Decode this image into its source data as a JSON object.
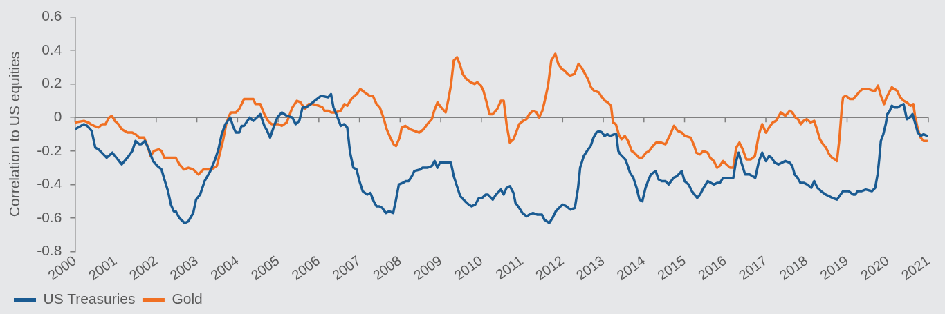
{
  "chart_data": {
    "type": "line",
    "ylabel": "Correlation to US equities",
    "xlim": [
      2000,
      2021
    ],
    "xticks": [
      2000,
      2001,
      2002,
      2003,
      2004,
      2005,
      2006,
      2007,
      2008,
      2009,
      2010,
      2011,
      2012,
      2013,
      2014,
      2015,
      2016,
      2017,
      2018,
      2019,
      2020,
      2021
    ],
    "ylim": [
      -0.8,
      0.6
    ],
    "yticks": [
      -0.8,
      -0.6,
      -0.4,
      -0.2,
      0,
      0.2,
      0.4,
      0.6
    ],
    "legend": "bottom left",
    "ref_lines": [
      {
        "axis": "y",
        "value": 0,
        "color": "#808080"
      }
    ],
    "series": [
      {
        "name": "US Treasuries",
        "color": "#1a5b92",
        "x": [
          2000.0,
          2000.22,
          2000.3,
          2000.41,
          2000.5,
          2000.58,
          2000.78,
          2000.92,
          2001.15,
          2001.29,
          2001.41,
          2001.49,
          2001.58,
          2001.63,
          2001.72,
          2001.8,
          2001.92,
          2002.03,
          2002.13,
          2002.2,
          2002.29,
          2002.36,
          2002.43,
          2002.48,
          2002.57,
          2002.7,
          2002.79,
          2002.91,
          2002.98,
          2003.08,
          2003.19,
          2003.33,
          2003.45,
          2003.53,
          2003.61,
          2003.7,
          2003.82,
          2003.9,
          2003.96,
          2004.04,
          2004.1,
          2004.16,
          2004.3,
          2004.39,
          2004.56,
          2004.66,
          2004.73,
          2004.8,
          2004.9,
          2004.98,
          2005.09,
          2005.21,
          2005.35,
          2005.43,
          2005.52,
          2005.6,
          2005.69,
          2005.8,
          2005.95,
          2006.06,
          2006.23,
          2006.3,
          2006.36,
          2006.43,
          2006.54,
          2006.62,
          2006.7,
          2006.77,
          2006.85,
          2006.93,
          2007.0,
          2007.08,
          2007.19,
          2007.27,
          2007.35,
          2007.42,
          2007.49,
          2007.56,
          2007.65,
          2007.73,
          2007.83,
          2007.9,
          2007.97,
          2008.07,
          2008.14,
          2008.21,
          2008.29,
          2008.35,
          2008.5,
          2008.55,
          2008.67,
          2008.78,
          2008.85,
          2008.92,
          2008.98,
          2009.09,
          2009.18,
          2009.25,
          2009.32,
          2009.4,
          2009.48,
          2009.6,
          2009.69,
          2009.76,
          2009.85,
          2009.94,
          2010.02,
          2010.11,
          2010.16,
          2010.28,
          2010.36,
          2010.48,
          2010.55,
          2010.62,
          2010.7,
          2010.79,
          2010.84,
          2010.93,
          2011.01,
          2011.11,
          2011.18,
          2011.27,
          2011.38,
          2011.49,
          2011.55,
          2011.67,
          2011.75,
          2011.83,
          2011.91,
          2012.0,
          2012.09,
          2012.19,
          2012.3,
          2012.38,
          2012.43,
          2012.52,
          2012.6,
          2012.69,
          2012.76,
          2012.83,
          2012.9,
          2012.97,
          2013.03,
          2013.1,
          2013.17,
          2013.27,
          2013.32,
          2013.37,
          2013.42,
          2013.54,
          2013.59,
          2013.66,
          2013.74,
          2013.82,
          2013.89,
          2013.96,
          2014.04,
          2014.1,
          2014.17,
          2014.29,
          2014.36,
          2014.44,
          2014.53,
          2014.61,
          2014.73,
          2014.81,
          2014.93,
          2015.0,
          2015.1,
          2015.18,
          2015.31,
          2015.38,
          2015.47,
          2015.57,
          2015.72,
          2015.81,
          2015.87,
          2015.95,
          2016.03,
          2016.12,
          2016.2,
          2016.26,
          2016.33,
          2016.4,
          2016.49,
          2016.6,
          2016.74,
          2016.83,
          2016.91,
          2017.0,
          2017.08,
          2017.14,
          2017.22,
          2017.31,
          2017.48,
          2017.59,
          2017.65,
          2017.71,
          2017.78,
          2017.85,
          2017.93,
          2018.02,
          2018.12,
          2018.19,
          2018.27,
          2018.36,
          2018.47,
          2018.56,
          2018.64,
          2018.75,
          2018.81,
          2018.9,
          2019.04,
          2019.15,
          2019.2,
          2019.26,
          2019.35,
          2019.46,
          2019.61,
          2019.69,
          2019.75,
          2019.79,
          2019.83,
          2019.89,
          2019.95,
          2019.99,
          2020.05,
          2020.1,
          2020.17,
          2020.24,
          2020.31,
          2020.39,
          2020.47,
          2020.54,
          2020.61,
          2020.67,
          2020.74,
          2020.81,
          2020.88,
          2020.97
        ],
        "values": [
          -0.07,
          -0.04,
          -0.05,
          -0.08,
          -0.18,
          -0.19,
          -0.24,
          -0.21,
          -0.28,
          -0.24,
          -0.2,
          -0.14,
          -0.16,
          -0.16,
          -0.14,
          -0.18,
          -0.26,
          -0.29,
          -0.31,
          -0.37,
          -0.44,
          -0.52,
          -0.56,
          -0.56,
          -0.6,
          -0.63,
          -0.62,
          -0.57,
          -0.49,
          -0.46,
          -0.38,
          -0.32,
          -0.25,
          -0.19,
          -0.1,
          -0.04,
          0,
          -0.06,
          -0.09,
          -0.09,
          -0.05,
          -0.05,
          0,
          -0.02,
          0.02,
          -0.05,
          -0.08,
          -0.12,
          -0.05,
          0,
          0.03,
          0.01,
          0,
          -0.04,
          -0.02,
          0.06,
          0.06,
          0.08,
          0.11,
          0.13,
          0.12,
          0.14,
          0.06,
          0.02,
          -0.05,
          -0.04,
          -0.06,
          -0.21,
          -0.3,
          -0.31,
          -0.38,
          -0.44,
          -0.46,
          -0.45,
          -0.5,
          -0.53,
          -0.53,
          -0.54,
          -0.57,
          -0.56,
          -0.57,
          -0.49,
          -0.4,
          -0.39,
          -0.38,
          -0.38,
          -0.35,
          -0.32,
          -0.31,
          -0.3,
          -0.3,
          -0.29,
          -0.26,
          -0.3,
          -0.27,
          -0.27,
          -0.27,
          -0.27,
          -0.35,
          -0.41,
          -0.47,
          -0.5,
          -0.52,
          -0.53,
          -0.52,
          -0.48,
          -0.48,
          -0.46,
          -0.46,
          -0.49,
          -0.46,
          -0.43,
          -0.46,
          -0.42,
          -0.41,
          -0.45,
          -0.51,
          -0.54,
          -0.57,
          -0.59,
          -0.58,
          -0.57,
          -0.58,
          -0.58,
          -0.61,
          -0.63,
          -0.6,
          -0.56,
          -0.54,
          -0.52,
          -0.53,
          -0.55,
          -0.54,
          -0.42,
          -0.3,
          -0.23,
          -0.2,
          -0.17,
          -0.12,
          -0.09,
          -0.08,
          -0.09,
          -0.11,
          -0.1,
          -0.11,
          -0.1,
          -0.1,
          -0.2,
          -0.22,
          -0.25,
          -0.28,
          -0.33,
          -0.36,
          -0.42,
          -0.49,
          -0.5,
          -0.42,
          -0.38,
          -0.34,
          -0.32,
          -0.37,
          -0.38,
          -0.38,
          -0.4,
          -0.36,
          -0.35,
          -0.32,
          -0.38,
          -0.4,
          -0.44,
          -0.48,
          -0.46,
          -0.42,
          -0.38,
          -0.4,
          -0.39,
          -0.39,
          -0.36,
          -0.36,
          -0.36,
          -0.36,
          -0.27,
          -0.21,
          -0.27,
          -0.34,
          -0.34,
          -0.36,
          -0.26,
          -0.21,
          -0.26,
          -0.23,
          -0.24,
          -0.27,
          -0.28,
          -0.26,
          -0.27,
          -0.29,
          -0.34,
          -0.36,
          -0.39,
          -0.39,
          -0.4,
          -0.42,
          -0.38,
          -0.42,
          -0.44,
          -0.46,
          -0.47,
          -0.48,
          -0.49,
          -0.47,
          -0.44,
          -0.44,
          -0.46,
          -0.46,
          -0.44,
          -0.44,
          -0.43,
          -0.44,
          -0.42,
          -0.34,
          -0.25,
          -0.14,
          -0.1,
          -0.04,
          0.02,
          0.04,
          0.07,
          0.06,
          0.06,
          0.07,
          0.08,
          -0.01,
          0,
          0.02,
          -0.03,
          -0.09,
          -0.11,
          -0.1,
          -0.11
        ]
      },
      {
        "name": "Gold",
        "color": "#f07023",
        "x": [
          2000.0,
          2000.22,
          2000.33,
          2000.39,
          2000.47,
          2000.58,
          2000.67,
          2000.75,
          2000.84,
          2000.91,
          2000.98,
          2001.07,
          2001.15,
          2001.29,
          2001.41,
          2001.49,
          2001.58,
          2001.7,
          2001.77,
          2001.86,
          2001.94,
          2002.06,
          2002.13,
          2002.2,
          2002.29,
          2002.37,
          2002.48,
          2002.57,
          2002.68,
          2002.79,
          2002.91,
          2003.04,
          2003.16,
          2003.28,
          2003.36,
          2003.49,
          2003.56,
          2003.65,
          2003.72,
          2003.79,
          2003.84,
          2003.96,
          2004.04,
          2004.16,
          2004.39,
          2004.44,
          2004.56,
          2004.64,
          2004.75,
          2004.84,
          2004.92,
          2005.01,
          2005.09,
          2005.21,
          2005.35,
          2005.46,
          2005.55,
          2005.66,
          2005.75,
          2005.86,
          2006.0,
          2006.09,
          2006.14,
          2006.23,
          2006.31,
          2006.4,
          2006.54,
          2006.63,
          2006.7,
          2006.8,
          2006.88,
          2006.94,
          2007.02,
          2007.13,
          2007.25,
          2007.33,
          2007.42,
          2007.5,
          2007.59,
          2007.67,
          2007.76,
          2007.84,
          2007.9,
          2007.99,
          2008.04,
          2008.13,
          2008.24,
          2008.35,
          2008.47,
          2008.58,
          2008.67,
          2008.78,
          2008.84,
          2008.92,
          2009.01,
          2009.12,
          2009.19,
          2009.25,
          2009.32,
          2009.4,
          2009.48,
          2009.54,
          2009.63,
          2009.74,
          2009.83,
          2009.9,
          2009.99,
          2010.05,
          2010.14,
          2010.2,
          2010.28,
          2010.39,
          2010.48,
          2010.55,
          2010.62,
          2010.7,
          2010.79,
          2010.87,
          2010.93,
          2011.03,
          2011.11,
          2011.18,
          2011.27,
          2011.36,
          2011.42,
          2011.5,
          2011.56,
          2011.64,
          2011.72,
          2011.82,
          2011.89,
          2011.98,
          2012.04,
          2012.12,
          2012.18,
          2012.29,
          2012.39,
          2012.46,
          2012.55,
          2012.62,
          2012.7,
          2012.77,
          2012.89,
          2012.97,
          2013.04,
          2013.11,
          2013.19,
          2013.24,
          2013.31,
          2013.38,
          2013.45,
          2013.53,
          2013.61,
          2013.7,
          2013.76,
          2013.88,
          2013.96,
          2014.05,
          2014.13,
          2014.22,
          2014.3,
          2014.42,
          2014.53,
          2014.63,
          2014.74,
          2014.83,
          2014.93,
          2015.01,
          2015.15,
          2015.24,
          2015.29,
          2015.38,
          2015.46,
          2015.57,
          2015.63,
          2015.72,
          2015.8,
          2015.86,
          2015.95,
          2016.03,
          2016.12,
          2016.2,
          2016.27,
          2016.35,
          2016.43,
          2016.52,
          2016.63,
          2016.73,
          2016.83,
          2016.91,
          2017.0,
          2017.08,
          2017.17,
          2017.25,
          2017.37,
          2017.48,
          2017.59,
          2017.65,
          2017.73,
          2017.79,
          2017.86,
          2017.93,
          2018.01,
          2018.1,
          2018.19,
          2018.27,
          2018.33,
          2018.41,
          2018.48,
          2018.56,
          2018.63,
          2018.7,
          2018.75,
          2018.81,
          2018.87,
          2018.9,
          2018.97,
          2019.07,
          2019.15,
          2019.29,
          2019.38,
          2019.52,
          2019.63,
          2019.69,
          2019.76,
          2019.83,
          2019.91,
          2019.97,
          2020.1,
          2020.23,
          2020.31,
          2020.39,
          2020.47,
          2020.56,
          2020.63,
          2020.67,
          2020.74,
          2020.81,
          2020.88,
          2020.97
        ],
        "values": [
          -0.03,
          -0.02,
          -0.03,
          -0.04,
          -0.05,
          -0.06,
          -0.04,
          -0.04,
          0,
          0.01,
          -0.02,
          -0.04,
          -0.07,
          -0.09,
          -0.09,
          -0.1,
          -0.12,
          -0.12,
          -0.16,
          -0.23,
          -0.2,
          -0.19,
          -0.2,
          -0.24,
          -0.24,
          -0.24,
          -0.24,
          -0.28,
          -0.31,
          -0.3,
          -0.31,
          -0.34,
          -0.31,
          -0.31,
          -0.31,
          -0.29,
          -0.22,
          -0.13,
          -0.04,
          0.01,
          0.03,
          0.03,
          0.05,
          0.11,
          0.11,
          0.08,
          0.08,
          0.03,
          -0.02,
          -0.04,
          -0.04,
          -0.04,
          -0.05,
          -0.03,
          0.06,
          0.1,
          0.09,
          0.05,
          0.08,
          0.08,
          0.07,
          0.06,
          0.04,
          0.04,
          0.03,
          0.03,
          0.04,
          0.08,
          0.07,
          0.11,
          0.13,
          0.14,
          0.17,
          0.15,
          0.13,
          0.13,
          0.08,
          0.06,
          0,
          -0.07,
          -0.12,
          -0.16,
          -0.17,
          -0.12,
          -0.06,
          -0.05,
          -0.07,
          -0.08,
          -0.09,
          -0.07,
          -0.04,
          -0.01,
          0.04,
          0.09,
          0.06,
          0.03,
          0.11,
          0.19,
          0.34,
          0.36,
          0.31,
          0.26,
          0.23,
          0.21,
          0.2,
          0.21,
          0.19,
          0.16,
          0.08,
          0.02,
          0.02,
          0.05,
          0.1,
          0.1,
          -0.04,
          -0.15,
          -0.13,
          -0.08,
          -0.04,
          -0.02,
          -0.01,
          0.02,
          0.04,
          0.03,
          0,
          0.04,
          0.1,
          0.19,
          0.34,
          0.38,
          0.32,
          0.29,
          0.28,
          0.26,
          0.25,
          0.26,
          0.32,
          0.3,
          0.26,
          0.23,
          0.18,
          0.16,
          0.15,
          0.12,
          0.1,
          0.09,
          0.07,
          -0.03,
          -0.04,
          -0.1,
          -0.13,
          -0.11,
          -0.14,
          -0.2,
          -0.21,
          -0.24,
          -0.24,
          -0.21,
          -0.2,
          -0.17,
          -0.15,
          -0.15,
          -0.16,
          -0.11,
          -0.05,
          -0.08,
          -0.09,
          -0.11,
          -0.12,
          -0.17,
          -0.21,
          -0.22,
          -0.2,
          -0.21,
          -0.24,
          -0.26,
          -0.3,
          -0.29,
          -0.26,
          -0.28,
          -0.3,
          -0.3,
          -0.18,
          -0.15,
          -0.19,
          -0.25,
          -0.25,
          -0.23,
          -0.1,
          -0.04,
          -0.09,
          -0.06,
          -0.03,
          -0.02,
          0.03,
          0.01,
          0.04,
          0.03,
          0,
          -0.01,
          -0.04,
          -0.02,
          -0.01,
          -0.03,
          -0.02,
          -0.08,
          -0.13,
          -0.16,
          -0.18,
          -0.22,
          -0.24,
          -0.25,
          -0.26,
          -0.13,
          0.06,
          0.12,
          0.13,
          0.11,
          0.11,
          0.15,
          0.17,
          0.17,
          0.16,
          0.16,
          0.19,
          0.13,
          0.08,
          0.12,
          0.18,
          0.16,
          0.12,
          0.1,
          0.09,
          0.07,
          0.08,
          0.01,
          -0.07,
          -0.12,
          -0.14,
          -0.14
        ]
      }
    ]
  }
}
